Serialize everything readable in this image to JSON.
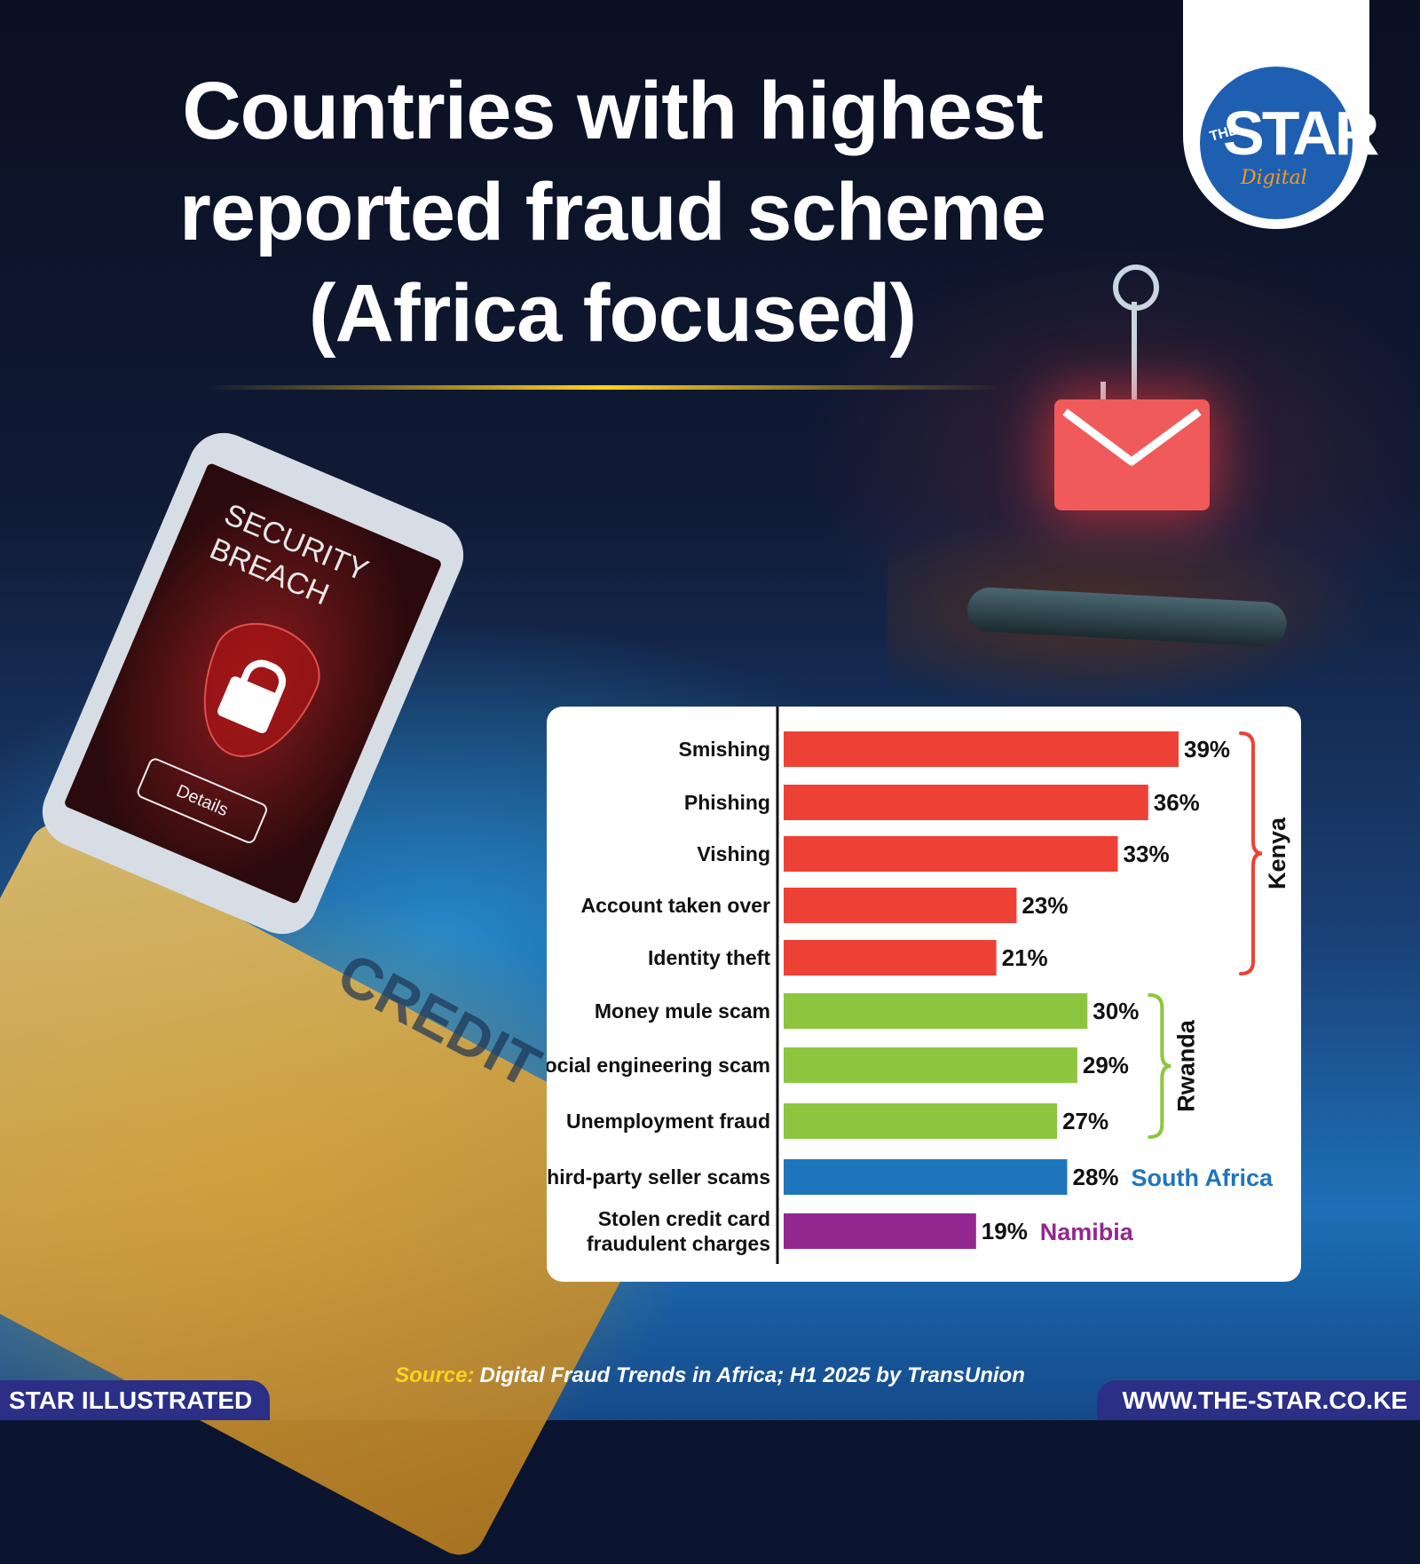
{
  "title_lines": [
    "Countries with highest",
    "reported fraud scheme",
    "(Africa focused)"
  ],
  "logo": {
    "the": "THE",
    "star": "STAR",
    "digital": "Digital"
  },
  "illustration": {
    "phone_screen_lines": [
      "SECURITY",
      "BREACH"
    ],
    "phone_button": "Details",
    "card_text": "CREDIT CARD",
    "icons": [
      "lock-icon",
      "shield-icon",
      "envelope-icon",
      "fishing-hook-icon"
    ]
  },
  "chart_data": {
    "type": "bar",
    "orientation": "horizontal",
    "unit": "%",
    "categories": [
      "Smishing",
      "Phishing",
      "Vishing",
      "Account taken over",
      "Identity theft",
      "Money mule scam",
      "Social engineering scam",
      "Unemployment fraud",
      "Third-party seller scams",
      "Stolen credit card\nfraudulent charges"
    ],
    "values": [
      39,
      36,
      33,
      23,
      21,
      30,
      29,
      27,
      28,
      19
    ],
    "value_labels": [
      "39%",
      "36%",
      "33%",
      "23%",
      "21%",
      "30%",
      "29%",
      "27%",
      "28%",
      "19%"
    ],
    "groups": [
      {
        "name": "Kenya",
        "color": "#ee4136",
        "start": 0,
        "end": 4,
        "label_style": "bracket-vertical"
      },
      {
        "name": "Rwanda",
        "color": "#8cc63f",
        "start": 5,
        "end": 7,
        "label_style": "bracket-vertical"
      },
      {
        "name": "South Africa",
        "color": "#1f75bc",
        "start": 8,
        "end": 8,
        "label_style": "inline"
      },
      {
        "name": "Namibia",
        "color": "#92278f",
        "start": 9,
        "end": 9,
        "label_style": "inline"
      }
    ],
    "xlim": [
      0,
      39
    ],
    "grid": false,
    "legend": "none"
  },
  "source": {
    "label": "Source:",
    "text": "Digital Fraud Trends in Africa; H1 2025 by TransUnion"
  },
  "footer": {
    "left": "STAR ILLUSTRATED",
    "right": "WWW.THE-STAR.CO.KE"
  }
}
